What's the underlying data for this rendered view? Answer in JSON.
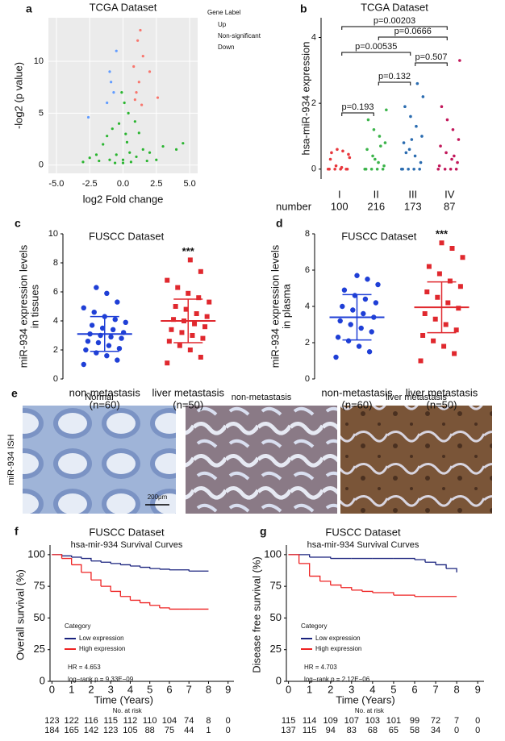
{
  "chart_data": [
    {
      "type": "scatter",
      "panel": "a",
      "title": "TCGA Dataset",
      "xlabel": "log2 Fold change",
      "ylabel": "-log2 (p value)",
      "legend_title": "Gene Label",
      "xlim": [
        -5.6,
        5.6
      ],
      "ylim": [
        -0.8,
        14.2
      ],
      "xticks": [
        {
          "value": -5,
          "label": "-5.0"
        },
        {
          "value": -2.5,
          "label": "-2.5"
        },
        {
          "value": 0,
          "label": "0.0"
        },
        {
          "value": 2.5,
          "label": "2.5"
        },
        {
          "value": 5,
          "label": "5.0"
        }
      ],
      "yticks": [
        0,
        5,
        10
      ],
      "grid": true,
      "series": [
        {
          "name": "Up",
          "color": "#f8766d",
          "x": [
            1.0,
            1.2,
            0.8,
            1.5,
            2.0,
            1.1,
            1.3,
            1.4,
            0.9,
            2.6
          ],
          "values": [
            7,
            8,
            9.5,
            10.5,
            9,
            12,
            13,
            5.8,
            6.3,
            6.5
          ]
        },
        {
          "name": "Non-significant",
          "color": "#2ab530",
          "x": [
            0,
            -0.5,
            0.5,
            -1,
            1,
            -1.5,
            1.5,
            0.2,
            -0.3,
            0.4,
            -0.8,
            0.9,
            -2,
            2,
            2.5,
            -2.5,
            3,
            -3,
            4,
            4.5,
            0.1,
            -0.1,
            0.3,
            -1.2,
            1.2,
            0,
            0.6,
            -0.6,
            1.8,
            -1.8
          ],
          "values": [
            0.2,
            1,
            1.2,
            0.5,
            0.8,
            2,
            1.5,
            3,
            4,
            5,
            3.5,
            4.2,
            1,
            1.2,
            0.5,
            0.7,
            1.8,
            0.3,
            1.5,
            2.1,
            6,
            7,
            2.2,
            2.8,
            3.1,
            0.5,
            0.3,
            0.2,
            0.4,
            0.4
          ]
        },
        {
          "name": "Down",
          "color": "#619cff",
          "x": [
            -0.9,
            -1,
            -0.7,
            -2.6,
            -1.2,
            -0.5
          ],
          "values": [
            8,
            9,
            7,
            4.6,
            6,
            11
          ]
        }
      ]
    },
    {
      "type": "strip",
      "panel": "b",
      "title": "TCGA Dataset",
      "ylabel": "hsa-miR-934 expression",
      "count_label": "number",
      "categories": [
        "I",
        "II",
        "III",
        "IV"
      ],
      "counts": [
        100,
        216,
        173,
        87
      ],
      "ylim": [
        -0.3,
        4.6
      ],
      "yticks": [
        0,
        2,
        4
      ],
      "groups": [
        {
          "color": "#e8383d",
          "values": [
            0,
            0,
            0,
            0,
            0,
            0,
            0.05,
            0.1,
            0.3,
            0.45,
            0.55,
            0.6,
            0.5,
            0.35
          ]
        },
        {
          "color": "#3cb44b",
          "values": [
            0,
            0,
            0,
            0,
            0,
            0.1,
            0.2,
            0.4,
            0.6,
            0.8,
            1.0,
            1.2,
            1.5,
            1.8,
            0.7,
            0.3
          ]
        },
        {
          "color": "#2b6cb0",
          "values": [
            0,
            0,
            0,
            0,
            0,
            0.2,
            0.4,
            0.6,
            0.8,
            1.0,
            1.3,
            1.6,
            1.9,
            2.2,
            2.6,
            0.9,
            0.5
          ]
        },
        {
          "color": "#c2185b",
          "values": [
            0,
            0,
            0,
            0,
            0.1,
            0.2,
            0.3,
            0.5,
            0.7,
            0.9,
            1.2,
            1.5,
            1.9,
            3.3,
            0.4
          ]
        }
      ],
      "comparisons": [
        {
          "from": "I",
          "to": "II",
          "label": "p=0.193"
        },
        {
          "from": "II",
          "to": "III",
          "label": "p=0.132"
        },
        {
          "from": "III",
          "to": "IV",
          "label": "p=0.507"
        },
        {
          "from": "I",
          "to": "III",
          "label": "p=0.00535"
        },
        {
          "from": "II",
          "to": "IV",
          "label": "p=0.0666"
        },
        {
          "from": "I",
          "to": "IV",
          "label": "p=0.00203"
        }
      ]
    },
    {
      "type": "dot",
      "panel": "c",
      "title": "FUSCC Dataset",
      "ylabel": [
        "miR-934 expression levels",
        "in tissues"
      ],
      "annotation": "***",
      "categories": [
        "non-metastasis",
        "liver metastasis"
      ],
      "ns": [
        "(n=60)",
        "(n=50)"
      ],
      "ylim": [
        0,
        10
      ],
      "yticks": [
        0,
        2,
        4,
        6,
        8,
        10
      ],
      "groups": [
        {
          "color": "#1f3fd6",
          "values": [
            1.0,
            1.3,
            1.6,
            1.8,
            2.0,
            2.1,
            2.3,
            2.5,
            2.6,
            2.8,
            2.9,
            3.0,
            3.1,
            3.2,
            3.4,
            3.5,
            3.7,
            3.9,
            4.1,
            4.3,
            4.6,
            4.9,
            5.3,
            5.9,
            6.3
          ],
          "mean": 3.1,
          "sd": 1.2
        },
        {
          "color": "#e0282e",
          "values": [
            1.1,
            1.5,
            2.0,
            2.3,
            2.6,
            2.8,
            3.0,
            3.2,
            3.4,
            3.6,
            3.8,
            4.0,
            4.1,
            4.3,
            4.5,
            4.8,
            5.0,
            5.3,
            5.6,
            5.9,
            6.3,
            6.8,
            7.4,
            8.2
          ],
          "mean": 4.0,
          "sd": 1.5
        }
      ]
    },
    {
      "type": "dot",
      "panel": "d",
      "title": "FUSCC Dataset",
      "ylabel": [
        "miR-934 expression levels",
        "in plasma"
      ],
      "annotation": "***",
      "categories": [
        "non-metastasis",
        "liver metastasis"
      ],
      "ns": [
        "(n=60)",
        "(n=50)"
      ],
      "ylim": [
        0,
        8
      ],
      "yticks": [
        0,
        2,
        4,
        6,
        8
      ],
      "groups": [
        {
          "color": "#1f3fd6",
          "values": [
            1.2,
            1.5,
            1.8,
            2.1,
            2.3,
            2.6,
            2.8,
            3.0,
            3.2,
            3.4,
            3.6,
            3.8,
            4.0,
            4.2,
            4.4,
            4.6,
            4.9,
            5.2,
            5.5,
            5.7
          ],
          "mean": 3.4,
          "sd": 1.25
        },
        {
          "color": "#e0282e",
          "values": [
            1.0,
            1.4,
            1.8,
            2.1,
            2.4,
            2.7,
            3.0,
            3.3,
            3.6,
            3.9,
            4.2,
            4.5,
            4.8,
            5.1,
            5.4,
            5.8,
            6.2,
            6.7,
            7.2,
            7.5
          ],
          "mean": 3.95,
          "sd": 1.4
        }
      ]
    },
    {
      "type": "km",
      "panel": "f",
      "title": "FUSCC Dataset",
      "subtitle": "hsa-mir-934 Survival Curves",
      "xlabel": "Time (Years)",
      "ylabel": "Overall survival (%)",
      "legend_title": "Category",
      "hr": "HR = 4.653",
      "logrank": "log−rank  p = 9.33E−09",
      "risk_title": "No. at risk",
      "xlim": [
        -0.1,
        9.3
      ],
      "xticks": [
        0,
        1,
        2,
        3,
        4,
        5,
        6,
        7,
        8,
        9
      ],
      "ylim": [
        0,
        105
      ],
      "yticks": [
        0,
        25,
        50,
        75,
        100
      ],
      "series": [
        {
          "name": "Low expression",
          "color": "#1a237e",
          "x": [
            0,
            0.5,
            1,
            1.5,
            2,
            2.5,
            3,
            3.5,
            4,
            4.5,
            5,
            5.5,
            6,
            7,
            8
          ],
          "values": [
            100,
            99,
            98,
            97,
            95,
            94,
            93,
            92,
            91,
            90,
            89,
            88.5,
            88,
            87,
            87
          ],
          "at_risk": [
            123,
            122,
            116,
            115,
            112,
            110,
            104,
            74,
            8,
            0
          ]
        },
        {
          "name": "High expression",
          "color": "#ee2222",
          "x": [
            0,
            0.5,
            1,
            1.5,
            2,
            2.5,
            3,
            3.5,
            4,
            4.5,
            5,
            5.5,
            6,
            7,
            8
          ],
          "values": [
            100,
            97,
            92,
            86,
            80,
            75,
            71,
            67,
            64,
            62,
            60,
            58,
            57,
            57,
            57
          ],
          "at_risk": [
            184,
            165,
            142,
            123,
            105,
            88,
            75,
            44,
            1,
            0
          ]
        }
      ]
    },
    {
      "type": "km",
      "panel": "g",
      "title": "FUSCC Dataset",
      "subtitle": "hsa-mir-934 Survival Curves",
      "xlabel": "Time (Years)",
      "ylabel": "Disease free survival (%)",
      "legend_title": "Category",
      "hr": "HR = 4.703",
      "logrank": "log−rank  p = 2.12E−06",
      "risk_title": "No. at risk",
      "xlim": [
        -0.1,
        9.3
      ],
      "xticks": [
        0,
        1,
        2,
        3,
        4,
        5,
        6,
        7,
        8,
        9
      ],
      "ylim": [
        0,
        105
      ],
      "yticks": [
        0,
        25,
        50,
        75,
        100
      ],
      "series": [
        {
          "name": "Low expression",
          "color": "#1a237e",
          "x": [
            0,
            1,
            2,
            3,
            4,
            5,
            6,
            6.5,
            7,
            7.5,
            8
          ],
          "values": [
            100,
            98,
            97,
            97,
            97,
            97,
            96,
            94,
            92,
            89,
            86
          ],
          "at_risk": [
            115,
            114,
            109,
            107,
            103,
            101,
            99,
            72,
            7,
            0
          ]
        },
        {
          "name": "High expression",
          "color": "#ee2222",
          "x": [
            0,
            0.5,
            1,
            1.5,
            2,
            2.5,
            3,
            3.5,
            4,
            5,
            6,
            7,
            8
          ],
          "values": [
            100,
            93,
            83,
            79,
            76,
            74,
            72,
            71,
            70,
            68,
            67,
            67,
            67
          ],
          "at_risk": [
            137,
            115,
            94,
            83,
            68,
            65,
            58,
            34,
            0,
            0
          ]
        }
      ]
    }
  ],
  "figure_e": {
    "panel": "e",
    "row_label": "miR-934 ISH",
    "images": [
      "Normal",
      "non-metastasis",
      "liver metastasis"
    ],
    "scale_bar": "200μm"
  }
}
